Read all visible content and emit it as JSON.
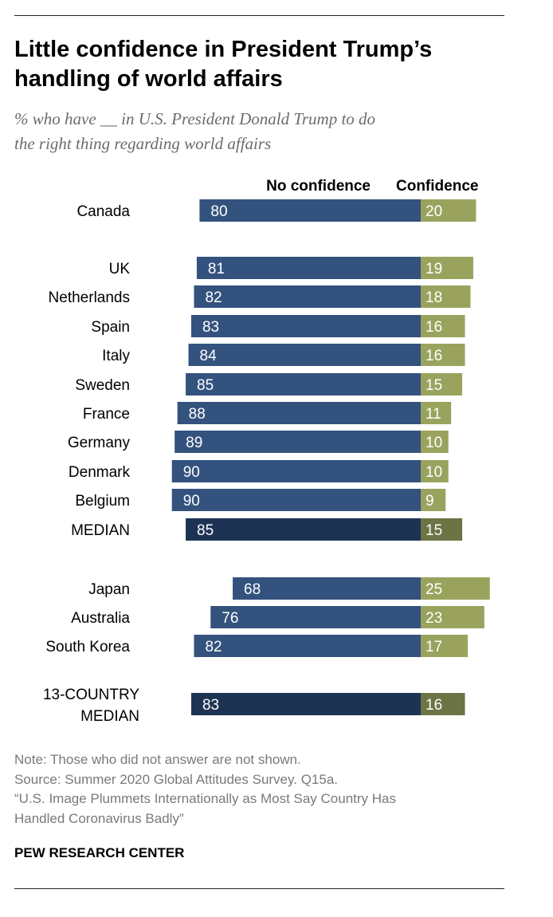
{
  "title_line1": "Little confidence in President Trump’s",
  "title_line2": "handling of world affairs",
  "subtitle_line1": "% who have __ in U.S. President Donald Trump to do",
  "subtitle_line2": "the right thing regarding world affairs",
  "notes": {
    "note": "Note: Those who did not answer are not shown.",
    "source": "Source: Summer 2020 Global Attitudes Survey. Q15a.",
    "report_line1": "“U.S. Image Plummets Internationally as Most Say Country Has",
    "report_line2": "Handled Coronavirus Badly”"
  },
  "organization": "PEW RESEARCH CENTER",
  "colors": {
    "no_confidence": "#34527e",
    "confidence": "#9aa35e",
    "no_confidence_median": "#1e3354",
    "confidence_median": "#6c7445",
    "rule": "#222222"
  },
  "chart_data": {
    "type": "bar",
    "orientation": "horizontal-diverging",
    "series": [
      {
        "name": "No confidence",
        "values": [
          80,
          81,
          82,
          83,
          84,
          85,
          88,
          89,
          90,
          90,
          85,
          68,
          76,
          82,
          83
        ]
      },
      {
        "name": "Confidence",
        "values": [
          20,
          19,
          18,
          16,
          16,
          15,
          11,
          10,
          10,
          9,
          15,
          25,
          23,
          17,
          16
        ]
      }
    ],
    "rows": [
      {
        "label": [
          "Canada"
        ],
        "no_confidence": 80,
        "confidence": 20,
        "median": false
      },
      {
        "label": [
          "UK"
        ],
        "no_confidence": 81,
        "confidence": 19,
        "median": false
      },
      {
        "label": [
          "Netherlands"
        ],
        "no_confidence": 82,
        "confidence": 18,
        "median": false
      },
      {
        "label": [
          "Spain"
        ],
        "no_confidence": 83,
        "confidence": 16,
        "median": false
      },
      {
        "label": [
          "Italy"
        ],
        "no_confidence": 84,
        "confidence": 16,
        "median": false
      },
      {
        "label": [
          "Sweden"
        ],
        "no_confidence": 85,
        "confidence": 15,
        "median": false
      },
      {
        "label": [
          "France"
        ],
        "no_confidence": 88,
        "confidence": 11,
        "median": false
      },
      {
        "label": [
          "Germany"
        ],
        "no_confidence": 89,
        "confidence": 10,
        "median": false
      },
      {
        "label": [
          "Denmark"
        ],
        "no_confidence": 90,
        "confidence": 10,
        "median": false
      },
      {
        "label": [
          "Belgium"
        ],
        "no_confidence": 90,
        "confidence": 9,
        "median": false
      },
      {
        "label": [
          "MEDIAN"
        ],
        "no_confidence": 85,
        "confidence": 15,
        "median": true
      },
      {
        "label": [
          "Japan"
        ],
        "no_confidence": 68,
        "confidence": 25,
        "median": false
      },
      {
        "label": [
          "Australia"
        ],
        "no_confidence": 76,
        "confidence": 23,
        "median": false
      },
      {
        "label": [
          "South Korea"
        ],
        "no_confidence": 82,
        "confidence": 17,
        "median": false
      },
      {
        "label": [
          "13-COUNTRY",
          "MEDIAN"
        ],
        "no_confidence": 83,
        "confidence": 16,
        "median": true
      }
    ]
  }
}
